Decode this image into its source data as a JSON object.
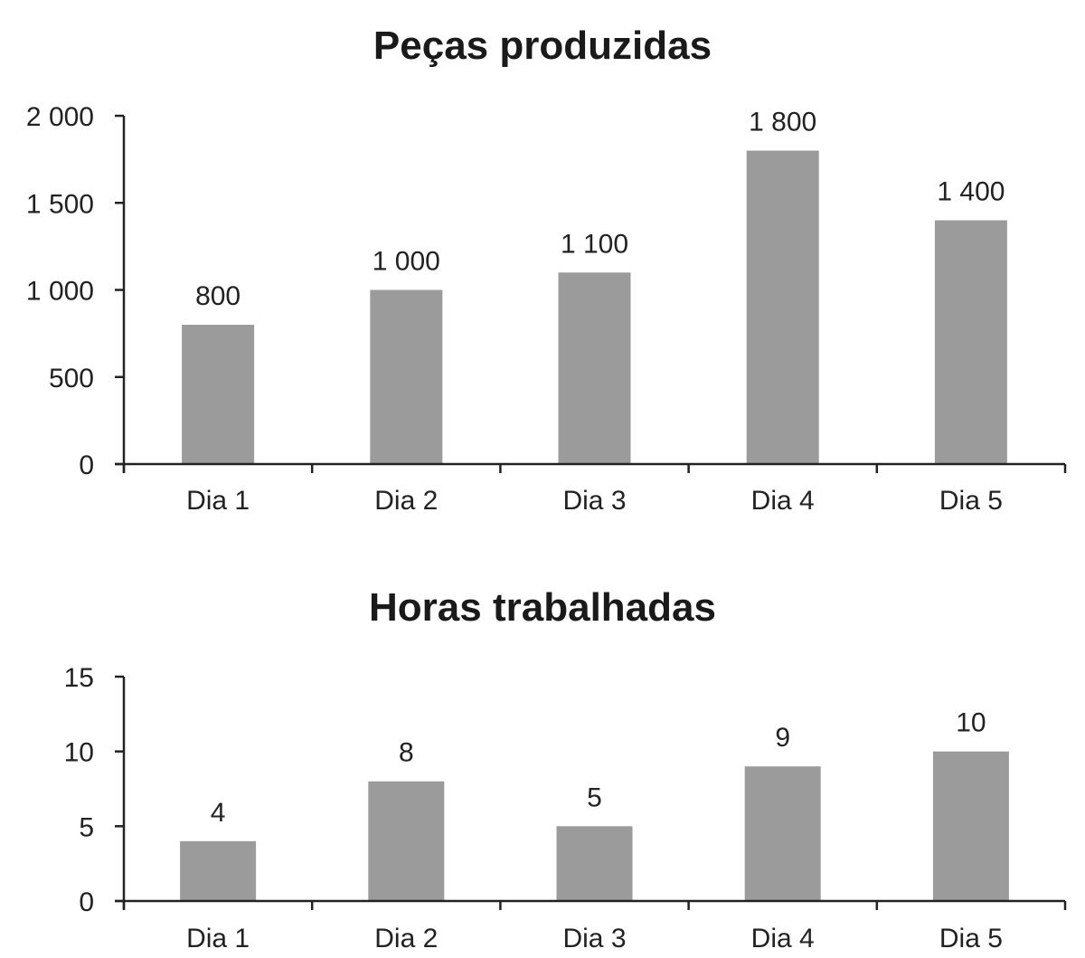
{
  "colors": {
    "bar": "#9b9b9b",
    "axis": "#222222",
    "text": "#222222"
  },
  "chart_data": [
    {
      "type": "bar",
      "title": "Peças produzidas",
      "xlabel": "",
      "ylabel": "",
      "categories": [
        "Dia 1",
        "Dia 2",
        "Dia 3",
        "Dia 4",
        "Dia 5"
      ],
      "values": [
        800,
        1000,
        1100,
        1800,
        1400
      ],
      "value_labels": [
        "800",
        "1 000",
        "1 100",
        "1 800",
        "1 400"
      ],
      "ylim": [
        0,
        2000
      ],
      "yticks": [
        0,
        500,
        1000,
        1500,
        2000
      ],
      "ytick_labels": [
        "0",
        "500",
        "1 000",
        "1 500",
        "2 000"
      ],
      "grid": false,
      "legend": "none"
    },
    {
      "type": "bar",
      "title": "Horas trabalhadas",
      "xlabel": "",
      "ylabel": "",
      "categories": [
        "Dia 1",
        "Dia 2",
        "Dia 3",
        "Dia 4",
        "Dia 5"
      ],
      "values": [
        4,
        8,
        5,
        9,
        10
      ],
      "value_labels": [
        "4",
        "8",
        "5",
        "9",
        "10"
      ],
      "ylim": [
        0,
        15
      ],
      "yticks": [
        0,
        5,
        10,
        15
      ],
      "ytick_labels": [
        "0",
        "5",
        "10",
        "15"
      ],
      "grid": false,
      "legend": "none"
    }
  ]
}
